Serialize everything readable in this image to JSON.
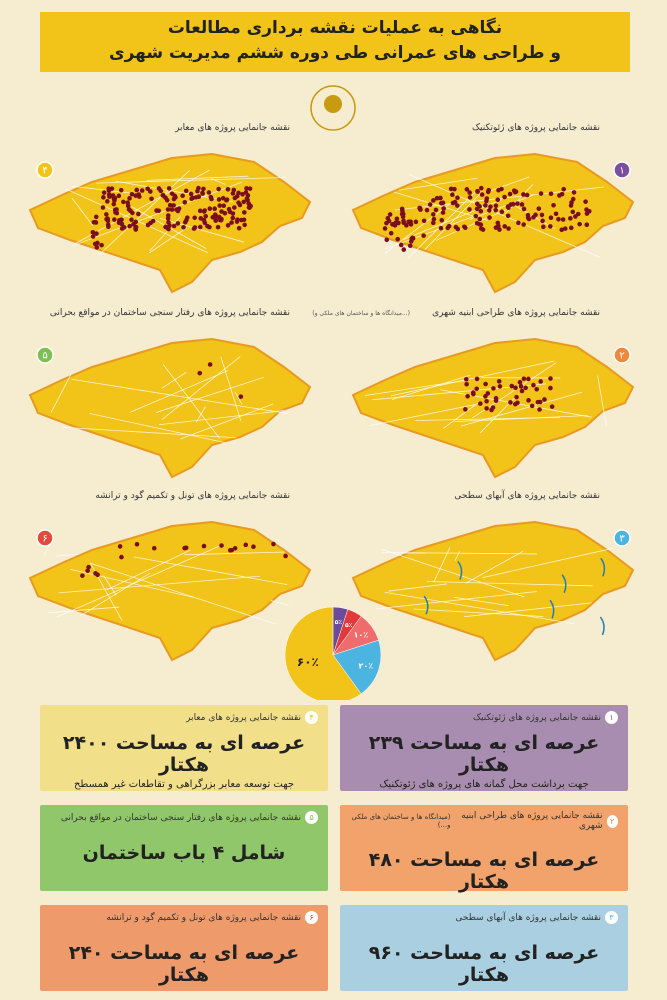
{
  "header": {
    "title_line1": "نگاهی به عملیات نقشه برداری مطالعات",
    "title_line2": "و طراحی های عمرانی طی دوره ششم مدیریت شهری"
  },
  "maps": [
    {
      "number": "۱",
      "title": "نقشه جانمایی پروژه های ژئوتکنیک"
    },
    {
      "number": "۲",
      "title": "نقشه جانمایی پروژه های طراحی ابنیه شهری",
      "note": "(میدانگاه ها و ساختمان های ملکی و...)"
    },
    {
      "number": "۳",
      "title": "نقشه جانمایی پروژه های آبهای سطحی"
    },
    {
      "number": "۴",
      "title": "نقشه جانمایی پروژه های معابر"
    },
    {
      "number": "۵",
      "title": "نقشه جانمایی پروژه های رفتار سنجی ساختمان در مواقع بحرانی"
    },
    {
      "number": "۶",
      "title": "نقشه جانمایی پروژه های تونل و تکمیم گود و ترانشه"
    }
  ],
  "chart_data": {
    "type": "pie",
    "values": [
      5,
      5,
      10,
      20,
      60
    ],
    "value_labels": [
      "۵٪",
      "۵٪",
      "۱۰٪",
      "۲۰٪",
      "۶۰٪"
    ],
    "colors": [
      "#6a4a9a",
      "#e23a3a",
      "#f06b6b",
      "#4cb4e0",
      "#f2c318"
    ]
  },
  "cards": [
    {
      "number": "۱",
      "title": "نقشه جانمایی پروژه های ژئوتکنیک",
      "main": "عرصه ای به مساحت ۲۳۹ هکتار",
      "sub": "جهت برداشت محل گمانه های پروژه های ژئوتکنیک"
    },
    {
      "number": "۲",
      "title": "نقشه جانمایی پروژه های طراحی ابنیه شهری",
      "note": "(میدانگاه ها و ساختمان های ملکی و...)",
      "main": "عرصه ای به مساحت ۴۸۰ هکتار"
    },
    {
      "number": "۳",
      "title": "نقشه جانمایی پروژه های آبهای سطحی",
      "main": "عرصه ای به مساحت ۹۶۰ هکتار"
    },
    {
      "number": "۴",
      "title": "نقشه جانمایی پروژه های معابر",
      "main": "عرصه ای به مساحت ۲۴۰۰ هکتار",
      "sub": "جهت توسعه معابر بزرگراهی و تقاطعات غیر همسطح"
    },
    {
      "number": "۵",
      "title": "نقشه جانمایی پروژه های رفتار سنجی ساختمان در مواقع بحرانی",
      "main": "شامل ۴ باب ساختمان"
    },
    {
      "number": "۶",
      "title": "نقشه جانمایی پروژه های تونل و تکمیم گود و ترانشه",
      "main": "عرصه ای به مساحت ۲۴۰ هکتار"
    }
  ]
}
